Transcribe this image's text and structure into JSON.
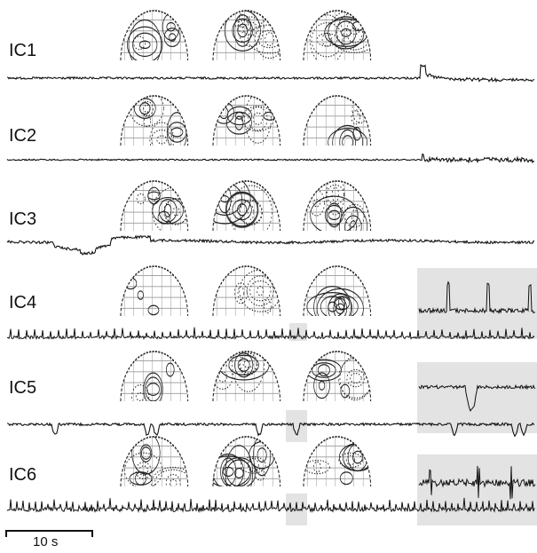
{
  "figure": {
    "scale_bar_label": "10 s",
    "trace_color": "#111111",
    "map_line_color": "#222222",
    "map_grid_color": "#9a9a9a",
    "highlight_color": "#e3e3e3",
    "components": [
      {
        "label": "IC1",
        "maps": 3,
        "trace_style": "step-artifact",
        "zoom_inset": false,
        "highlight_segment": false
      },
      {
        "label": "IC2",
        "maps": 3,
        "trace_style": "late-noise",
        "zoom_inset": false,
        "highlight_segment": false
      },
      {
        "label": "IC3",
        "maps": 3,
        "trace_style": "slow-drift",
        "zoom_inset": false,
        "highlight_segment": false
      },
      {
        "label": "IC4",
        "maps": 3,
        "trace_style": "periodic-spikes",
        "zoom_inset": true,
        "highlight_segment": true
      },
      {
        "label": "IC5",
        "maps": 3,
        "trace_style": "negative-deflections",
        "zoom_inset": true,
        "highlight_segment": true
      },
      {
        "label": "IC6",
        "maps": 3,
        "trace_style": "dense-spikes",
        "zoom_inset": true,
        "highlight_segment": true
      }
    ]
  }
}
